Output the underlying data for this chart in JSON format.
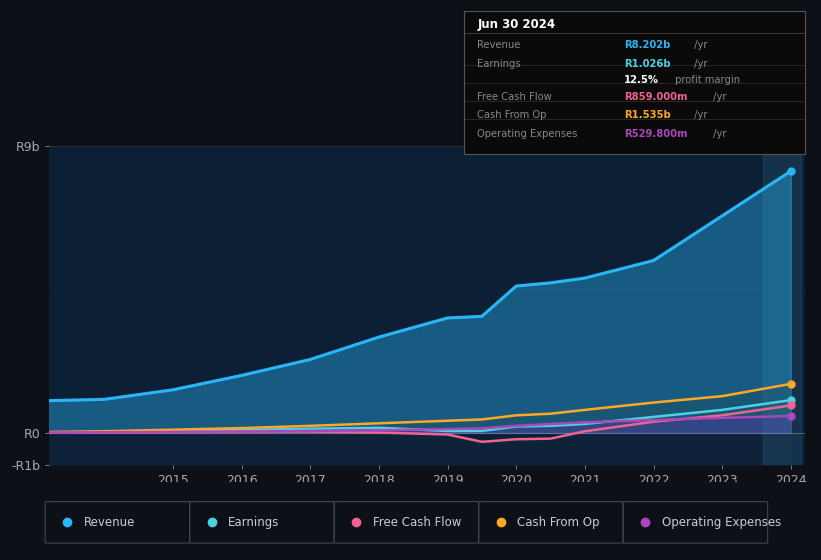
{
  "background_color": "#0d1117",
  "plot_bg_color": "#0d1f35",
  "title": "Jun 30 2024",
  "ylabel_top": "R9b",
  "ylabel_bottom": "-R1b",
  "ylabel_zero": "R0",
  "years": [
    2013,
    2014,
    2015,
    2016,
    2017,
    2018,
    2019,
    2019.5,
    2020,
    2020.5,
    2021,
    2022,
    2023,
    2024
  ],
  "revenue": [
    1.0,
    1.05,
    1.35,
    1.8,
    2.3,
    3.0,
    3.6,
    3.65,
    4.6,
    4.7,
    4.85,
    5.4,
    6.8,
    8.2
  ],
  "earnings": [
    0.02,
    0.03,
    0.06,
    0.09,
    0.13,
    0.16,
    0.06,
    0.06,
    0.2,
    0.22,
    0.28,
    0.5,
    0.72,
    1.026
  ],
  "free_cash_flow": [
    0.01,
    0.01,
    0.02,
    0.03,
    0.04,
    0.01,
    -0.05,
    -0.28,
    -0.2,
    -0.18,
    0.05,
    0.35,
    0.55,
    0.859
  ],
  "cash_from_op": [
    0.02,
    0.05,
    0.1,
    0.15,
    0.22,
    0.3,
    0.38,
    0.42,
    0.55,
    0.6,
    0.72,
    0.95,
    1.15,
    1.535
  ],
  "op_expenses": [
    0.01,
    0.02,
    0.03,
    0.04,
    0.06,
    0.08,
    0.12,
    0.14,
    0.22,
    0.28,
    0.33,
    0.4,
    0.47,
    0.5298
  ],
  "revenue_color": "#29b6f6",
  "earnings_color": "#4dd0e1",
  "free_cash_flow_color": "#f06292",
  "cash_from_op_color": "#ffa726",
  "op_expenses_color": "#ab47bc",
  "revenue_value": "R8.202b",
  "earnings_value": "R1.026b",
  "profit_margin": "12.5%",
  "free_cash_flow_value": "R859.000m",
  "cash_from_op_value": "R1.535b",
  "op_expenses_value": "R529.800m",
  "ylim": [
    -1.0,
    9.0
  ],
  "tick_years": [
    2015,
    2016,
    2017,
    2018,
    2019,
    2020,
    2021,
    2022,
    2023,
    2024
  ],
  "legend_labels": [
    "Revenue",
    "Earnings",
    "Free Cash Flow",
    "Cash From Op",
    "Operating Expenses"
  ]
}
